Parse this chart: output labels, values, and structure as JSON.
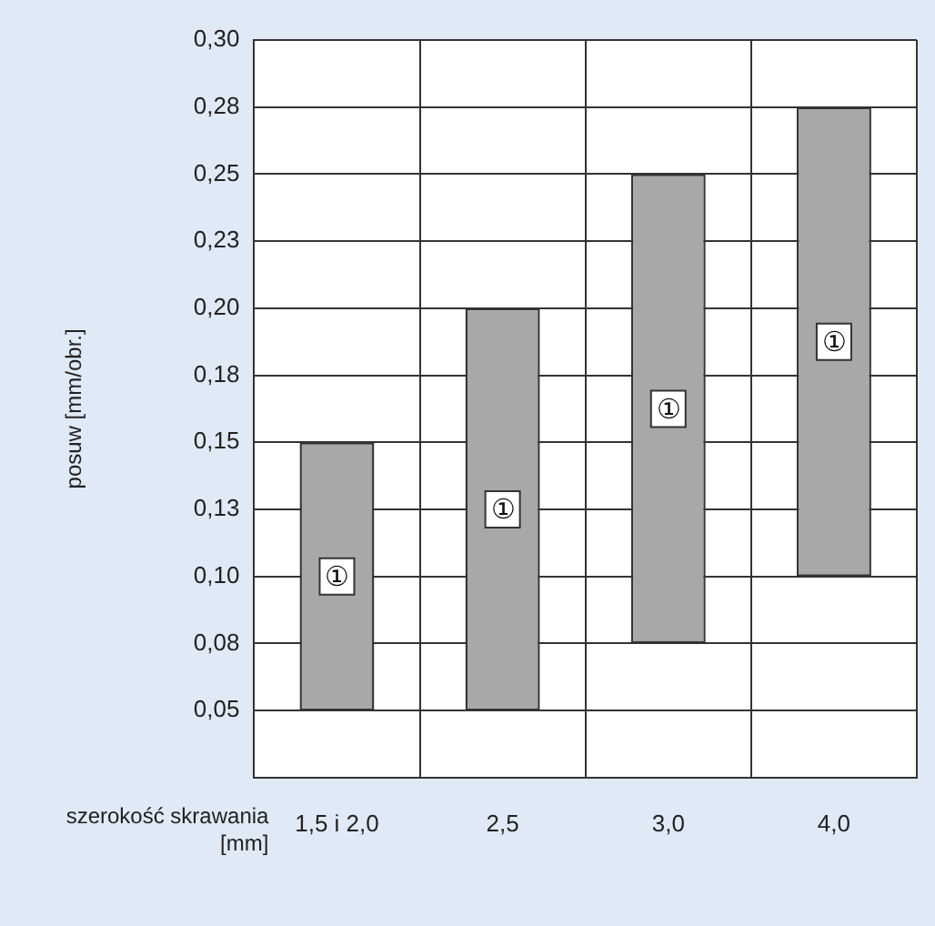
{
  "chart_data": {
    "type": "bar",
    "ylabel": "posuw [mm/obr.]",
    "xlabel": "szerokość skrawania [mm]",
    "categories": [
      "1,5 i 2,0",
      "2,5",
      "3,0",
      "4,0"
    ],
    "base": [
      0.05,
      0.05,
      0.075,
      0.1
    ],
    "values": [
      0.1,
      0.15,
      0.175,
      0.175
    ],
    "color": "#a7a8aa",
    "ylim": [
      0.025,
      0.3
    ],
    "yticks": [
      {
        "value": 0.025,
        "label": null
      },
      {
        "value": 0.05,
        "label": "0,05"
      },
      {
        "value": 0.075,
        "label": "0,08"
      },
      {
        "value": 0.1,
        "label": "0,10"
      },
      {
        "value": 0.125,
        "label": "0,13"
      },
      {
        "value": 0.15,
        "label": "0,15"
      },
      {
        "value": 0.175,
        "label": "0,18"
      },
      {
        "value": 0.2,
        "label": "0,20"
      },
      {
        "value": 0.225,
        "label": "0,23"
      },
      {
        "value": 0.25,
        "label": "0,25"
      },
      {
        "value": 0.275,
        "label": "0,28"
      },
      {
        "value": 0.3,
        "label": "0,30"
      }
    ],
    "grid": true,
    "legend": false,
    "annotations": [
      {
        "text": "①",
        "x": "1,5 i 2,0",
        "y": 0.1
      },
      {
        "text": "①",
        "x": "2,5",
        "y": 0.125
      },
      {
        "text": "①",
        "x": "3,0",
        "y": 0.1625
      },
      {
        "text": "①",
        "x": "4,0",
        "y": 0.1875
      }
    ]
  }
}
